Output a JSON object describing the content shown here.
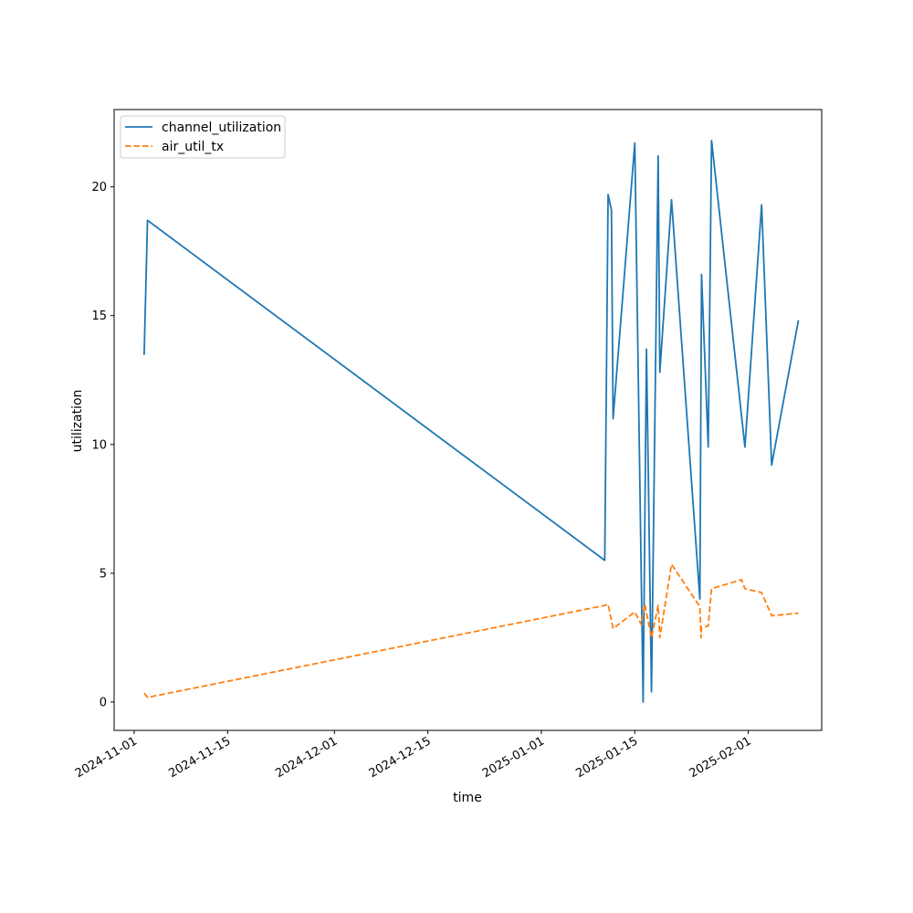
{
  "chart_data": {
    "type": "line",
    "title": "",
    "xlabel": "time",
    "ylabel": "utilization",
    "x_axis_type": "date",
    "xlim": [
      "2024-10-29",
      "2025-02-12"
    ],
    "ylim": [
      -1.1,
      23.0
    ],
    "x_ticks": [
      "2024-11-01",
      "2024-11-15",
      "2024-12-01",
      "2024-12-15",
      "2025-01-01",
      "2025-01-15",
      "2025-02-01"
    ],
    "y_ticks": [
      0,
      5,
      10,
      15,
      20
    ],
    "grid": false,
    "legend_position": "upper-left",
    "series": [
      {
        "name": "channel_utilization",
        "color": "#1f77b4",
        "style": "solid",
        "points": [
          [
            "2024-11-02T12:00",
            13.5
          ],
          [
            "2024-11-03T00:00",
            18.7
          ],
          [
            "2025-01-10T12:00",
            5.5
          ],
          [
            "2025-01-11T00:00",
            19.7
          ],
          [
            "2025-01-11T12:00",
            19.1
          ],
          [
            "2025-01-11T18:00",
            11.0
          ],
          [
            "2025-01-15T00:00",
            21.7
          ],
          [
            "2025-01-16T06:00",
            0.0
          ],
          [
            "2025-01-16T18:00",
            13.7
          ],
          [
            "2025-01-17T12:00",
            0.4
          ],
          [
            "2025-01-18T12:00",
            21.2
          ],
          [
            "2025-01-18T18:00",
            12.8
          ],
          [
            "2025-01-20T12:00",
            19.5
          ],
          [
            "2025-01-24T18:00",
            4.0
          ],
          [
            "2025-01-25T00:00",
            16.6
          ],
          [
            "2025-01-26T00:00",
            9.9
          ],
          [
            "2025-01-26T12:00",
            21.8
          ],
          [
            "2025-01-31T12:00",
            9.9
          ],
          [
            "2025-02-03T00:00",
            19.3
          ],
          [
            "2025-02-04T12:00",
            9.2
          ],
          [
            "2025-02-08T12:00",
            14.8
          ]
        ]
      },
      {
        "name": "air_util_tx",
        "color": "#ff7f0e",
        "style": "dashed",
        "points": [
          [
            "2024-11-02T12:00",
            0.35
          ],
          [
            "2024-11-03T00:00",
            0.18
          ],
          [
            "2025-01-10T12:00",
            3.75
          ],
          [
            "2025-01-11T00:00",
            3.8
          ],
          [
            "2025-01-11T18:00",
            2.85
          ],
          [
            "2025-01-15T00:00",
            3.5
          ],
          [
            "2025-01-16T00:00",
            3.0
          ],
          [
            "2025-01-16T12:00",
            3.8
          ],
          [
            "2025-01-17T12:00",
            2.5
          ],
          [
            "2025-01-18T12:00",
            3.75
          ],
          [
            "2025-01-18T18:00",
            2.5
          ],
          [
            "2025-01-20T12:00",
            5.35
          ],
          [
            "2025-01-24T18:00",
            3.7
          ],
          [
            "2025-01-24T22:00",
            2.5
          ],
          [
            "2025-01-25T00:00",
            2.9
          ],
          [
            "2025-01-26T00:00",
            2.95
          ],
          [
            "2025-01-26T12:00",
            4.4
          ],
          [
            "2025-01-31T00:00",
            4.75
          ],
          [
            "2025-01-31T12:00",
            4.4
          ],
          [
            "2025-02-03T00:00",
            4.25
          ],
          [
            "2025-02-04T12:00",
            3.35
          ],
          [
            "2025-02-08T12:00",
            3.45
          ]
        ]
      }
    ]
  }
}
